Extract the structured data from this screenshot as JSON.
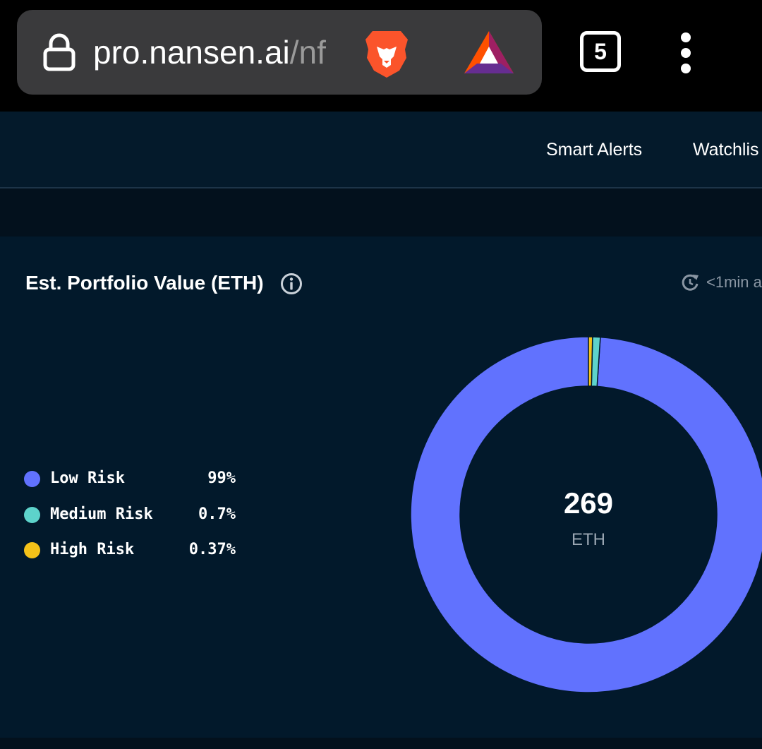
{
  "browser": {
    "url_domain": "pro.nansen.ai",
    "url_path": "/nf",
    "tab_count": "5",
    "icons": [
      "lock-icon",
      "brave-lion-icon",
      "bat-rewards-icon",
      "more-vert-icon"
    ]
  },
  "nav": {
    "items": [
      {
        "label": "Smart Alerts"
      },
      {
        "label": "Watchlis"
      }
    ]
  },
  "card": {
    "title": "Est. Portfolio Value (ETH)",
    "info_icon": "info-icon",
    "refresh_icon": "refresh-clock-icon",
    "updated": "<1min a"
  },
  "colors": {
    "background": "#02192b",
    "low": "#6172fe",
    "medium": "#5dd3cb",
    "high": "#f5c219"
  },
  "chart_data": {
    "type": "pie",
    "donut": true,
    "categories": [
      "Low Risk",
      "Medium Risk",
      "High Risk"
    ],
    "values": [
      99,
      0.7,
      0.37
    ],
    "value_labels": [
      "99%",
      "0.7%",
      "0.37%"
    ],
    "colors": [
      "#6172fe",
      "#5dd3cb",
      "#f5c219"
    ],
    "center_value": "269",
    "center_unit": "ETH",
    "legend_position": "left"
  }
}
